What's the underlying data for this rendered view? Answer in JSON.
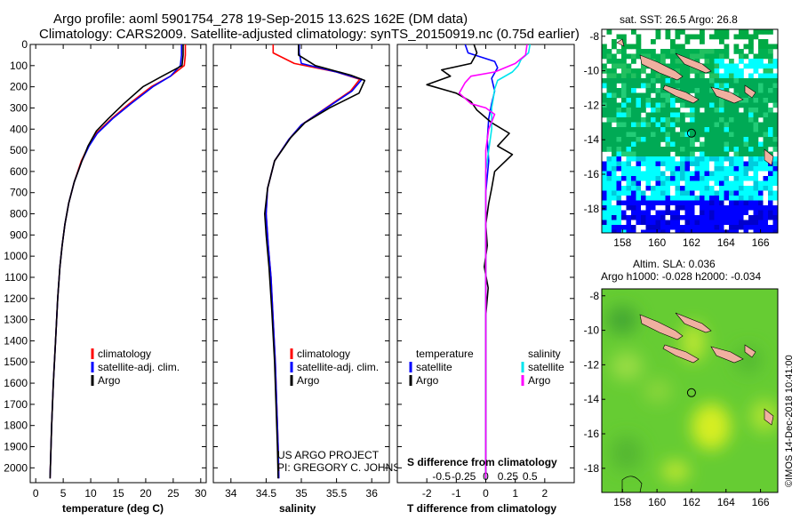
{
  "title_line1": "Argo profile: aoml 5901754_278 19-Sep-2015 13.62S 162E (DM data)",
  "title_line2": "Climatology: CARS2009. Satellite-adjusted climatology: synTS_20150919.nc (0.75d earlier)",
  "project_note": [
    "US ARGO PROJECT",
    "PI: GREGORY C. JOHNSON"
  ],
  "timestamp": "©IMOS 14-Dec-2018 10:41:00",
  "colors": {
    "climatology": "#ff0000",
    "satellite": "#0000ff",
    "argo": "#000000",
    "sal_satellite": "#00e5ee",
    "sal_argo": "#ff00ff"
  },
  "chart_data": [
    {
      "type": "line",
      "name": "temperature-profile",
      "xlabel": "temperature (deg C)",
      "xlim": [
        -1,
        31
      ],
      "xticks": [
        0,
        5,
        10,
        15,
        20,
        25,
        30
      ],
      "ylim": [
        2070,
        0
      ],
      "yticks": [
        0,
        100,
        200,
        300,
        400,
        500,
        600,
        700,
        800,
        900,
        1000,
        1100,
        1200,
        1300,
        1400,
        1500,
        1600,
        1700,
        1800,
        1900,
        2000
      ],
      "legend": [
        "climatology",
        "satellite-adj. clim.",
        "Argo"
      ],
      "series": [
        {
          "name": "climatology",
          "color": "#ff0000",
          "points": [
            [
              27.2,
              0
            ],
            [
              27.2,
              50
            ],
            [
              27.0,
              100
            ],
            [
              24.5,
              150
            ],
            [
              21.0,
              200
            ],
            [
              17.0,
              280
            ],
            [
              13.8,
              350
            ],
            [
              11.0,
              420
            ],
            [
              9.6,
              480
            ],
            [
              8.3,
              550
            ],
            [
              7.0,
              650
            ],
            [
              6.0,
              750
            ],
            [
              5.3,
              850
            ],
            [
              4.8,
              950
            ],
            [
              4.4,
              1050
            ],
            [
              4.0,
              1200
            ],
            [
              3.6,
              1400
            ],
            [
              3.2,
              1600
            ],
            [
              2.9,
              1800
            ],
            [
              2.6,
              2050
            ]
          ]
        },
        {
          "name": "satellite-adj. clim.",
          "color": "#0000ff",
          "points": [
            [
              26.5,
              0
            ],
            [
              26.5,
              50
            ],
            [
              26.3,
              100
            ],
            [
              24.5,
              150
            ],
            [
              21.3,
              200
            ],
            [
              17.3,
              280
            ],
            [
              14.0,
              350
            ],
            [
              11.2,
              420
            ],
            [
              9.7,
              480
            ],
            [
              8.4,
              550
            ],
            [
              7.0,
              650
            ],
            [
              6.0,
              750
            ],
            [
              5.3,
              850
            ],
            [
              4.8,
              950
            ],
            [
              4.4,
              1050
            ],
            [
              4.0,
              1200
            ],
            [
              3.6,
              1400
            ],
            [
              3.2,
              1600
            ],
            [
              2.9,
              1800
            ],
            [
              2.6,
              2050
            ]
          ]
        },
        {
          "name": "Argo",
          "color": "#000000",
          "points": [
            [
              26.8,
              0
            ],
            [
              26.8,
              50
            ],
            [
              26.6,
              100
            ],
            [
              23.0,
              150
            ],
            [
              19.5,
              200
            ],
            [
              16.0,
              280
            ],
            [
              13.2,
              350
            ],
            [
              11.0,
              410
            ],
            [
              9.5,
              480
            ],
            [
              8.4,
              550
            ],
            [
              7.0,
              650
            ],
            [
              6.0,
              750
            ],
            [
              5.3,
              850
            ],
            [
              4.8,
              950
            ],
            [
              4.4,
              1050
            ],
            [
              4.0,
              1200
            ],
            [
              3.6,
              1400
            ],
            [
              3.2,
              1600
            ],
            [
              2.9,
              1800
            ],
            [
              2.6,
              2050
            ]
          ]
        }
      ]
    },
    {
      "type": "line",
      "name": "salinity-profile",
      "xlabel": "salinity",
      "xlim": [
        33.75,
        36.25
      ],
      "xticks": [
        34,
        34.5,
        35,
        35.5,
        36
      ],
      "ylim": [
        2070,
        0
      ],
      "legend": [
        "climatology",
        "satellite-adj. clim.",
        "Argo"
      ],
      "series": [
        {
          "name": "climatology",
          "color": "#ff0000",
          "points": [
            [
              34.6,
              0
            ],
            [
              34.6,
              40
            ],
            [
              34.9,
              90
            ],
            [
              35.5,
              130
            ],
            [
              35.83,
              165
            ],
            [
              35.7,
              220
            ],
            [
              35.35,
              300
            ],
            [
              35.0,
              380
            ],
            [
              34.82,
              450
            ],
            [
              34.62,
              550
            ],
            [
              34.52,
              680
            ],
            [
              34.5,
              800
            ],
            [
              34.53,
              950
            ],
            [
              34.57,
              1100
            ],
            [
              34.6,
              1300
            ],
            [
              34.63,
              1500
            ],
            [
              34.65,
              1700
            ],
            [
              34.67,
              1900
            ],
            [
              34.68,
              2050
            ]
          ]
        },
        {
          "name": "satellite-adj. clim.",
          "color": "#0000ff",
          "points": [
            [
              34.97,
              0
            ],
            [
              34.97,
              40
            ],
            [
              35.0,
              90
            ],
            [
              35.5,
              130
            ],
            [
              35.86,
              165
            ],
            [
              35.72,
              220
            ],
            [
              35.36,
              300
            ],
            [
              35.0,
              380
            ],
            [
              34.82,
              450
            ],
            [
              34.62,
              550
            ],
            [
              34.52,
              680
            ],
            [
              34.5,
              800
            ],
            [
              34.53,
              950
            ],
            [
              34.57,
              1100
            ],
            [
              34.6,
              1300
            ],
            [
              34.63,
              1500
            ],
            [
              34.65,
              1700
            ],
            [
              34.67,
              1900
            ],
            [
              34.68,
              2050
            ]
          ]
        },
        {
          "name": "Argo",
          "color": "#000000",
          "points": [
            [
              34.96,
              0
            ],
            [
              34.96,
              50
            ],
            [
              35.2,
              100
            ],
            [
              35.7,
              145
            ],
            [
              35.9,
              170
            ],
            [
              35.82,
              230
            ],
            [
              35.4,
              300
            ],
            [
              35.05,
              370
            ],
            [
              34.85,
              440
            ],
            [
              34.62,
              550
            ],
            [
              34.52,
              680
            ],
            [
              34.48,
              800
            ],
            [
              34.5,
              900
            ],
            [
              34.54,
              1050
            ],
            [
              34.58,
              1250
            ],
            [
              34.62,
              1500
            ],
            [
              34.64,
              1700
            ],
            [
              34.66,
              1900
            ],
            [
              34.67,
              2050
            ]
          ]
        }
      ]
    },
    {
      "type": "line",
      "name": "difference-profile",
      "xlabel": "T difference from climatology",
      "xlabel_top": "S difference from climatology",
      "xlim": [
        -3,
        3
      ],
      "xticks": [
        -2,
        -1,
        0,
        1,
        2
      ],
      "top_ticks": [
        -0.5,
        -0.25,
        0,
        0.25,
        0.5
      ],
      "top_tick_labels": [
        "-0.5",
        "-0.25",
        "0",
        "0.25",
        "0.5"
      ],
      "ylim": [
        2070,
        0
      ],
      "legend_temperature": [
        "temperature",
        "satellite",
        "Argo"
      ],
      "legend_salinity": [
        "salinity",
        "satellite",
        "Argo"
      ],
      "series": [
        {
          "name": "temperature satellite",
          "color": "#0000ff",
          "points": [
            [
              -0.7,
              0
            ],
            [
              -0.6,
              40
            ],
            [
              0.3,
              80
            ],
            [
              0.4,
              110
            ],
            [
              0.2,
              160
            ],
            [
              0.3,
              220
            ],
            [
              0.2,
              280
            ],
            [
              0.1,
              350
            ],
            [
              0.05,
              450
            ],
            [
              0.1,
              550
            ],
            [
              0.0,
              700
            ],
            [
              0.0,
              900
            ],
            [
              0.0,
              1100
            ],
            [
              0.0,
              1300
            ],
            [
              0.0,
              1600
            ],
            [
              0.0,
              2050
            ]
          ]
        },
        {
          "name": "temperature Argo",
          "color": "#000000",
          "points": [
            [
              -0.4,
              0
            ],
            [
              -0.3,
              40
            ],
            [
              -0.5,
              90
            ],
            [
              -1.5,
              120
            ],
            [
              -1.2,
              150
            ],
            [
              -2.0,
              190
            ],
            [
              -1.0,
              230
            ],
            [
              -0.5,
              270
            ],
            [
              -0.3,
              310
            ],
            [
              0.2,
              370
            ],
            [
              0.8,
              420
            ],
            [
              0.4,
              480
            ],
            [
              0.9,
              520
            ],
            [
              0.3,
              600
            ],
            [
              0.2,
              680
            ],
            [
              0.1,
              750
            ],
            [
              0.0,
              850
            ],
            [
              0.05,
              950
            ],
            [
              -0.05,
              1050
            ],
            [
              0.08,
              1150
            ],
            [
              0.0,
              1280
            ],
            [
              0.0,
              1400
            ],
            [
              0.0,
              1600
            ],
            [
              0.0,
              2050
            ]
          ]
        },
        {
          "name": "salinity satellite",
          "color": "#00e5ee",
          "points": [
            [
              1.5,
              0
            ],
            [
              1.45,
              40
            ],
            [
              1.2,
              70
            ],
            [
              1.1,
              100
            ],
            [
              0.9,
              130
            ],
            [
              0.4,
              170
            ],
            [
              0.3,
              210
            ],
            [
              0.25,
              260
            ],
            [
              0.2,
              300
            ],
            [
              0.2,
              400
            ],
            [
              0.0,
              600
            ],
            [
              0.0,
              900
            ],
            [
              0.0,
              1200
            ],
            [
              0.0,
              1700
            ],
            [
              0.0,
              2050
            ]
          ]
        },
        {
          "name": "salinity Argo",
          "color": "#ff00ff",
          "points": [
            [
              1.4,
              0
            ],
            [
              1.35,
              50
            ],
            [
              1.0,
              90
            ],
            [
              0.3,
              130
            ],
            [
              -0.5,
              150
            ],
            [
              -0.7,
              180
            ],
            [
              -0.9,
              230
            ],
            [
              -0.5,
              280
            ],
            [
              0.0,
              300
            ],
            [
              0.3,
              330
            ],
            [
              0.1,
              400
            ],
            [
              0.0,
              500
            ],
            [
              0.0,
              800
            ],
            [
              0.0,
              1200
            ],
            [
              0.0,
              1700
            ],
            [
              0.0,
              2050
            ]
          ]
        }
      ]
    },
    {
      "type": "heatmap",
      "name": "sst-map",
      "title": "sat. SST: 26.5 Argo: 26.8",
      "xlim": [
        156.8,
        167
      ],
      "ylim": [
        -19.4,
        -7.6
      ],
      "xticks": [
        158,
        160,
        162,
        164,
        166
      ],
      "yticks": [
        -8,
        -10,
        -12,
        -14,
        -16,
        -18
      ],
      "profile_location": [
        162,
        -13.62
      ]
    },
    {
      "type": "heatmap",
      "name": "sla-map",
      "title_line1": "Altim. SLA: 0.036",
      "title_line2": "Argo h1000: -0.028 h2000: -0.034",
      "xlim": [
        156.8,
        167
      ],
      "ylim": [
        -19.4,
        -7.6
      ],
      "xticks": [
        158,
        160,
        162,
        164,
        166
      ],
      "yticks": [
        -8,
        -10,
        -12,
        -14,
        -16,
        -18
      ],
      "profile_location": [
        162,
        -13.62
      ]
    }
  ]
}
